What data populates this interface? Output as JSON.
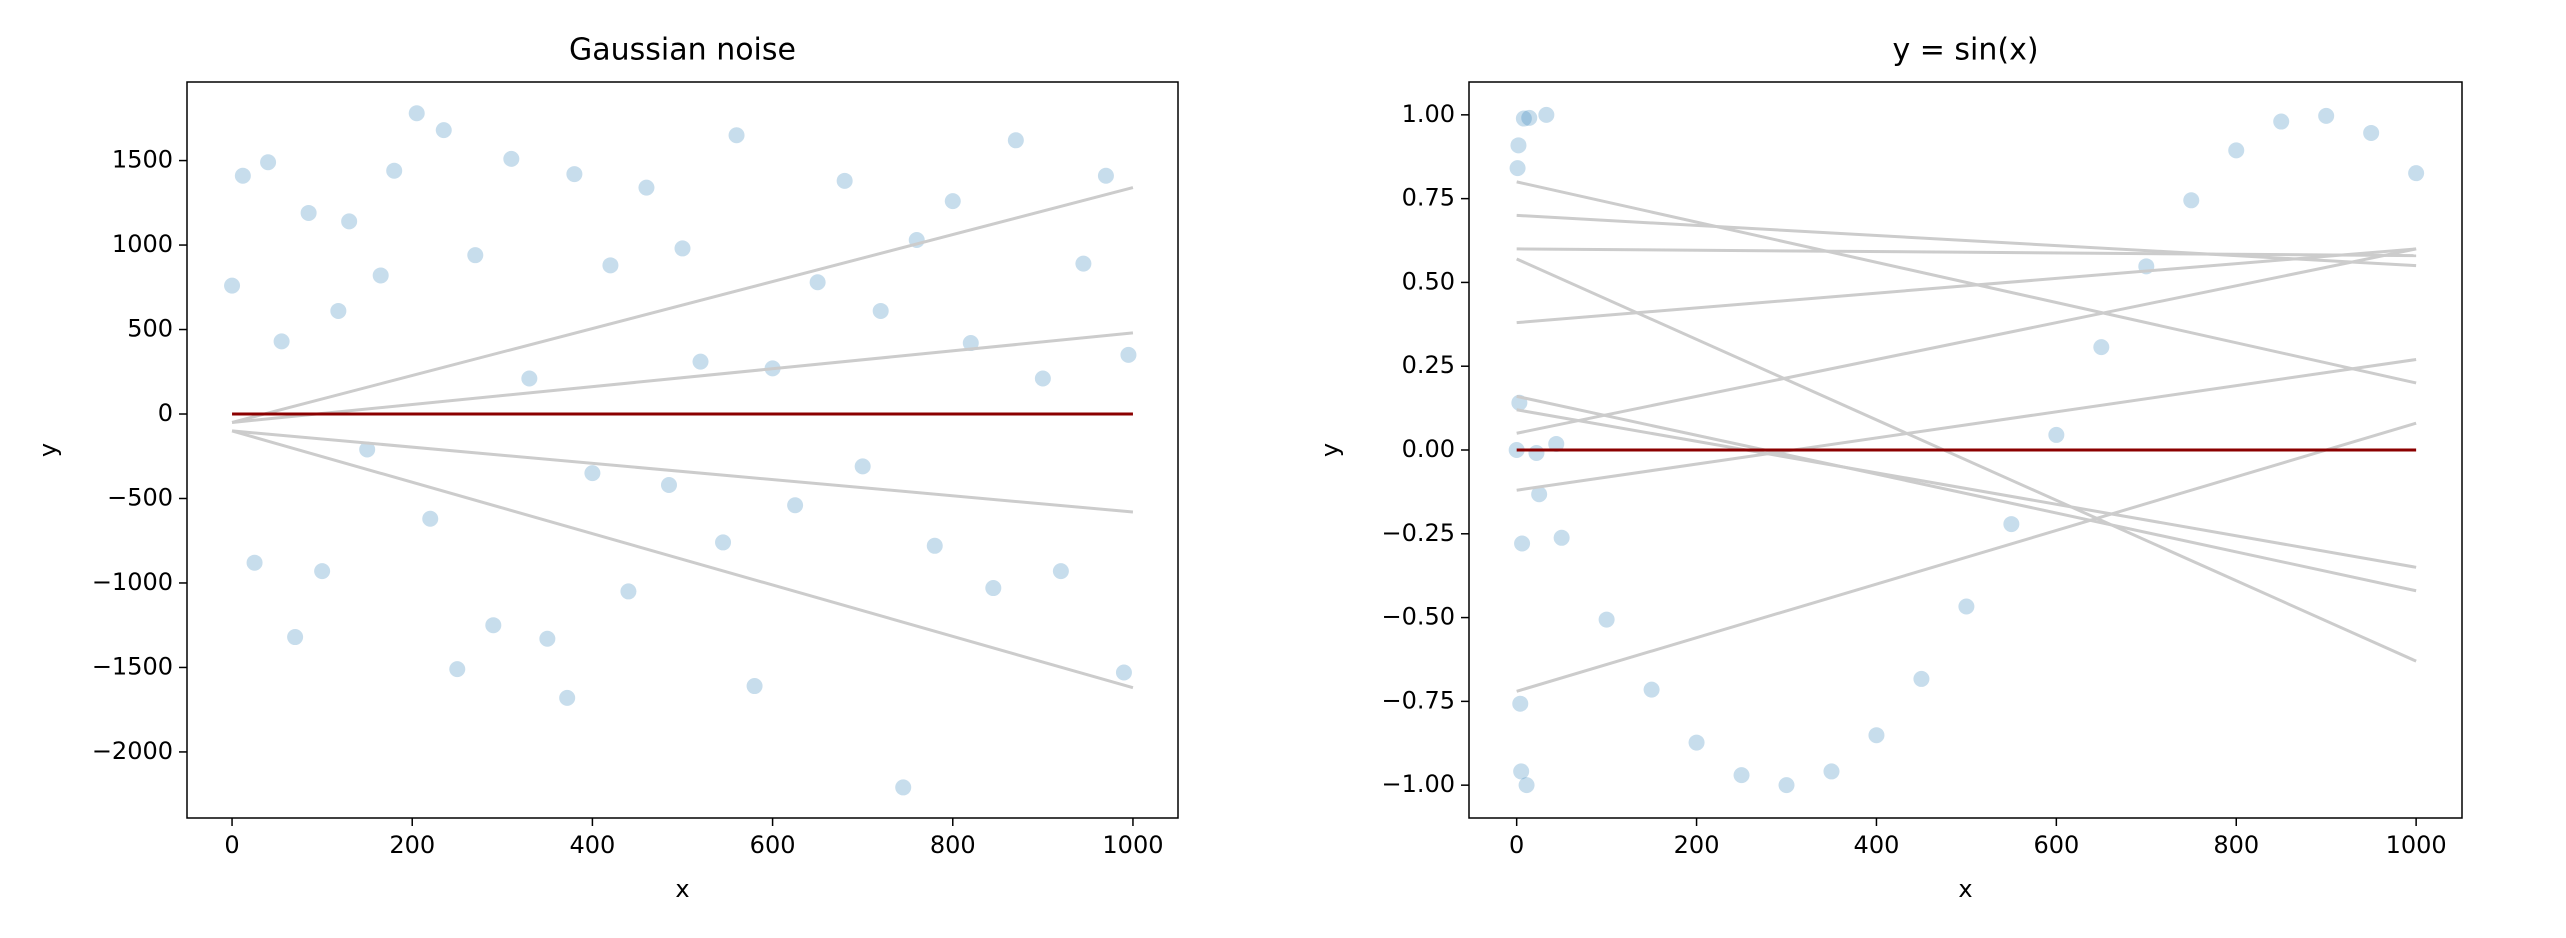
{
  "chart_data": [
    {
      "type": "scatter",
      "title": "Gaussian noise",
      "xlabel": "x",
      "ylabel": "y",
      "xlim": [
        -50,
        1050
      ],
      "ylim": [
        -2391,
        1965
      ],
      "xticks": [
        0,
        200,
        400,
        600,
        800,
        1000
      ],
      "yticks": [
        {
          "value": -2000,
          "label": "−2000"
        },
        {
          "value": -1500,
          "label": "−1500"
        },
        {
          "value": -1000,
          "label": "−1000"
        },
        {
          "value": -500,
          "label": "−500"
        },
        0,
        500,
        1000,
        1500
      ],
      "series": [
        {
          "type": "scatter",
          "color": "#1f77b4",
          "alpha": 0.25,
          "x": [
            0,
            12,
            25,
            40,
            55,
            70,
            85,
            100,
            118,
            130,
            150,
            165,
            180,
            205,
            220,
            235,
            250,
            270,
            290,
            310,
            330,
            350,
            372,
            380,
            400,
            420,
            440,
            460,
            485,
            500,
            520,
            545,
            560,
            580,
            600,
            625,
            650,
            680,
            700,
            720,
            745,
            760,
            780,
            800,
            820,
            845,
            870,
            900,
            920,
            945,
            970,
            990,
            995
          ],
          "values": [
            760,
            1410,
            -880,
            1490,
            430,
            -1320,
            1190,
            -930,
            610,
            1140,
            -210,
            820,
            1440,
            1780,
            -620,
            1680,
            -1510,
            940,
            -1250,
            1510,
            210,
            -1330,
            -1680,
            1420,
            -350,
            880,
            -1050,
            1340,
            -420,
            980,
            310,
            -760,
            1650,
            -1610,
            270,
            -540,
            780,
            1380,
            -310,
            610,
            -2210,
            1030,
            -780,
            1260,
            420,
            -1030,
            1620,
            210,
            -930,
            890,
            1410,
            -1530,
            350
          ]
        },
        {
          "type": "line",
          "color": "#cccccc",
          "x": [
            0,
            1000
          ],
          "values": [
            -50,
            1340
          ]
        },
        {
          "type": "line",
          "color": "#cccccc",
          "x": [
            0,
            1000
          ],
          "values": [
            -50,
            480
          ]
        },
        {
          "type": "line",
          "color": "#cccccc",
          "x": [
            0,
            1000
          ],
          "values": [
            -100,
            -580
          ]
        },
        {
          "type": "line",
          "color": "#cccccc",
          "x": [
            0,
            1000
          ],
          "values": [
            -100,
            -1620
          ]
        },
        {
          "type": "line",
          "color": "#8b0000",
          "x": [
            0,
            1000
          ],
          "values": [
            0,
            0
          ]
        }
      ]
    },
    {
      "type": "scatter",
      "title": "y = sin(x)",
      "xlabel": "x",
      "ylabel": "y",
      "xlim": [
        -53,
        1051
      ],
      "ylim": [
        -1.098,
        1.098
      ],
      "xticks": [
        0,
        200,
        400,
        600,
        800,
        1000
      ],
      "yticks": [
        {
          "value": -1,
          "label": "−1.00"
        },
        {
          "value": -0.75,
          "label": "−0.75"
        },
        {
          "value": -0.5,
          "label": "−0.50"
        },
        {
          "value": -0.25,
          "label": "−0.25"
        },
        {
          "value": 0,
          "label": "0.00"
        },
        0.25,
        {
          "value": 0.5,
          "label": "0.50"
        },
        0.75,
        {
          "value": 1,
          "label": "1.00"
        }
      ],
      "series": [
        {
          "type": "scatter",
          "color": "#1f77b4",
          "alpha": 0.25,
          "x": [
            0,
            1,
            2,
            3,
            4,
            5,
            6,
            8,
            11,
            14,
            22,
            25,
            33,
            44,
            50,
            100,
            150,
            200,
            250,
            300,
            350,
            400,
            450,
            500,
            550,
            600,
            650,
            700,
            750,
            800,
            850,
            900,
            950,
            1000
          ],
          "values": [
            0,
            0.841,
            0.909,
            0.141,
            -0.757,
            -0.959,
            -0.279,
            0.989,
            -1.0,
            0.991,
            -0.009,
            -0.132,
            1.0,
            0.018,
            -0.262,
            -0.506,
            -0.715,
            -0.873,
            -0.97,
            -1.0,
            -0.959,
            -0.851,
            -0.683,
            -0.467,
            -0.221,
            0.045,
            0.307,
            0.548,
            0.745,
            0.894,
            0.98,
            0.997,
            0.946,
            0.826
          ]
        },
        {
          "type": "line",
          "color": "#cccccc",
          "x": [
            0,
            1000
          ],
          "values": [
            0.8,
            0.2
          ]
        },
        {
          "type": "line",
          "color": "#cccccc",
          "x": [
            0,
            1000
          ],
          "values": [
            0.7,
            0.55
          ]
        },
        {
          "type": "line",
          "color": "#cccccc",
          "x": [
            0,
            1000
          ],
          "values": [
            0.6,
            0.58
          ]
        },
        {
          "type": "line",
          "color": "#cccccc",
          "x": [
            0,
            1000
          ],
          "values": [
            0.57,
            -0.63
          ]
        },
        {
          "type": "line",
          "color": "#cccccc",
          "x": [
            0,
            1000
          ],
          "values": [
            0.38,
            0.6
          ]
        },
        {
          "type": "line",
          "color": "#cccccc",
          "x": [
            0,
            1000
          ],
          "values": [
            0.16,
            -0.42
          ]
        },
        {
          "type": "line",
          "color": "#cccccc",
          "x": [
            0,
            1000
          ],
          "values": [
            0.05,
            0.6
          ]
        },
        {
          "type": "line",
          "color": "#cccccc",
          "x": [
            0,
            1000
          ],
          "values": [
            0.12,
            -0.35
          ]
        },
        {
          "type": "line",
          "color": "#cccccc",
          "x": [
            0,
            1000
          ],
          "values": [
            -0.12,
            0.27
          ]
        },
        {
          "type": "line",
          "color": "#cccccc",
          "x": [
            0,
            1000
          ],
          "values": [
            -0.72,
            0.08
          ]
        },
        {
          "type": "line",
          "color": "#8b0000",
          "x": [
            0,
            1000
          ],
          "values": [
            0,
            0
          ]
        }
      ]
    }
  ]
}
